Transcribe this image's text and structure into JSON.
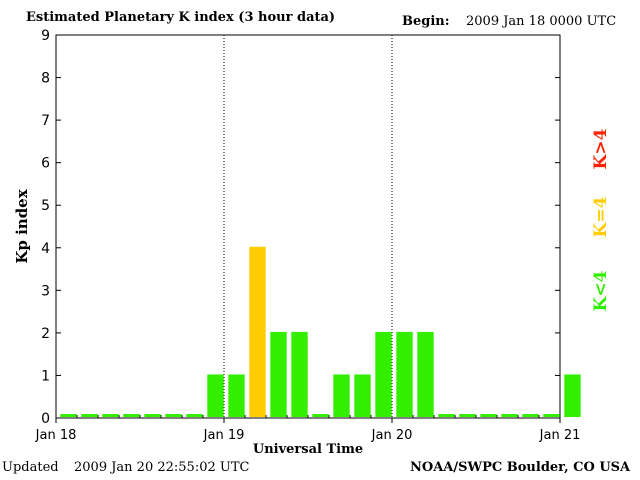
{
  "header": {
    "title": "Estimated Planetary K index (3 hour data)",
    "begin_label": "Begin:",
    "begin_value": "2009 Jan 18 0000 UTC"
  },
  "footer": {
    "updated_label": "Updated",
    "updated_value": "2009 Jan 20 22:55:02 UTC",
    "source": "NOAA/SWPC Boulder, CO USA"
  },
  "legend": {
    "items": [
      {
        "label": "K<4",
        "color": "#33ee00"
      },
      {
        "label": "K=4",
        "color": "#ffcc00"
      },
      {
        "label": "K>4",
        "color": "#ff2200"
      }
    ]
  },
  "chart_data": {
    "type": "bar",
    "xlabel": "Universal Time",
    "ylabel": "Kp index",
    "ylim": [
      0,
      9
    ],
    "y_ticks": [
      0,
      1,
      2,
      3,
      4,
      5,
      6,
      7,
      8,
      9
    ],
    "x_ticks": [
      "Jan 18",
      "Jan 19",
      "Jan 20",
      "Jan 21"
    ],
    "day_separators": [
      "Jan 19",
      "Jan 20"
    ],
    "bar_interval_hours": 3,
    "values": [
      0,
      0,
      0,
      0,
      0,
      0,
      0,
      1,
      1,
      4,
      2,
      2,
      0,
      1,
      1,
      2,
      2,
      2,
      0,
      0,
      0,
      0,
      0,
      0,
      1
    ],
    "colors": {
      "below": "#33ee00",
      "equal": "#ffcc00",
      "above": "#ff2200"
    }
  }
}
